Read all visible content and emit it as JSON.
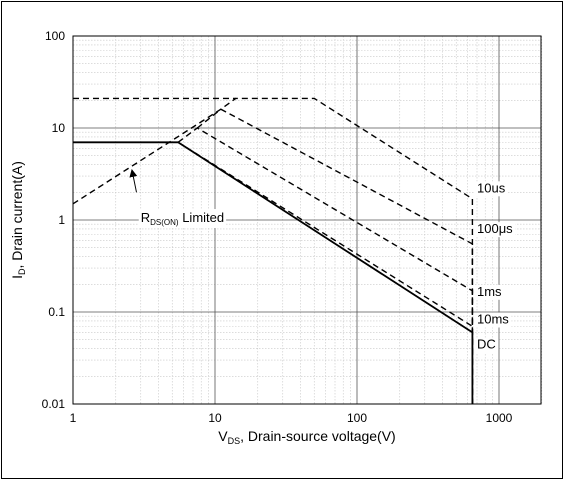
{
  "chart_data": {
    "type": "line",
    "title": "",
    "x_scale": "log",
    "y_scale": "log",
    "xlim": [
      1,
      2000
    ],
    "ylim": [
      0.01,
      100
    ],
    "grid": true,
    "xlabel": {
      "main": "V",
      "sub": "DS",
      "rest": ", Drain-source voltage(V)"
    },
    "ylabel": {
      "main": "I",
      "sub": "D",
      "rest": ", Drain current(A)"
    },
    "x_ticks": [
      {
        "value": 1,
        "label": "1"
      },
      {
        "value": 10,
        "label": "10"
      },
      {
        "value": 100,
        "label": "100"
      },
      {
        "value": 1000,
        "label": "1000"
      }
    ],
    "y_ticks": [
      {
        "value": 0.01,
        "label": "0.01"
      },
      {
        "value": 0.1,
        "label": "0.1"
      },
      {
        "value": 1,
        "label": "1"
      },
      {
        "value": 10,
        "label": "10"
      },
      {
        "value": 100,
        "label": "100"
      }
    ],
    "series": [
      {
        "name": "DC",
        "style": "solid",
        "points": [
          [
            1,
            7.0
          ],
          [
            5.5,
            7.0
          ],
          [
            650,
            0.06
          ],
          [
            650,
            0.01
          ]
        ],
        "label_at": [
          700,
          0.04
        ]
      },
      {
        "name": "10ms",
        "style": "dashed",
        "points": [
          [
            5.5,
            7.0
          ],
          [
            650,
            0.07
          ],
          [
            650,
            0.01
          ]
        ],
        "label_at": [
          700,
          0.075
        ]
      },
      {
        "name": "1ms",
        "style": "dashed",
        "points": [
          [
            5.5,
            7.0
          ],
          [
            7.5,
            10.0
          ],
          [
            650,
            0.17
          ],
          [
            650,
            0.01
          ]
        ],
        "label_at": [
          700,
          0.15
        ]
      },
      {
        "name": "100μs",
        "style": "dashed",
        "points": [
          [
            7.5,
            10.0
          ],
          [
            11,
            16.0
          ],
          [
            650,
            0.55
          ],
          [
            650,
            0.01
          ]
        ],
        "label_at": [
          700,
          0.72
        ]
      },
      {
        "name": "10us",
        "style": "dashed",
        "points": [
          [
            1,
            1.5
          ],
          [
            11,
            16.0
          ],
          [
            14,
            21.0
          ],
          [
            50,
            21.0
          ],
          [
            650,
            1.7
          ],
          [
            650,
            0.01
          ]
        ],
        "label_at": [
          700,
          2.0
        ]
      },
      {
        "name": "",
        "style": "dashed",
        "points": [
          [
            1,
            21.0
          ],
          [
            14,
            21.0
          ]
        ]
      }
    ],
    "annotation": {
      "main": "R",
      "sub": "DS(ON)",
      "rest": " Limited",
      "text_at": [
        3.0,
        0.95
      ],
      "arrow_from": [
        2.8,
        2.0
      ],
      "arrow_to": [
        2.6,
        3.5
      ]
    }
  }
}
